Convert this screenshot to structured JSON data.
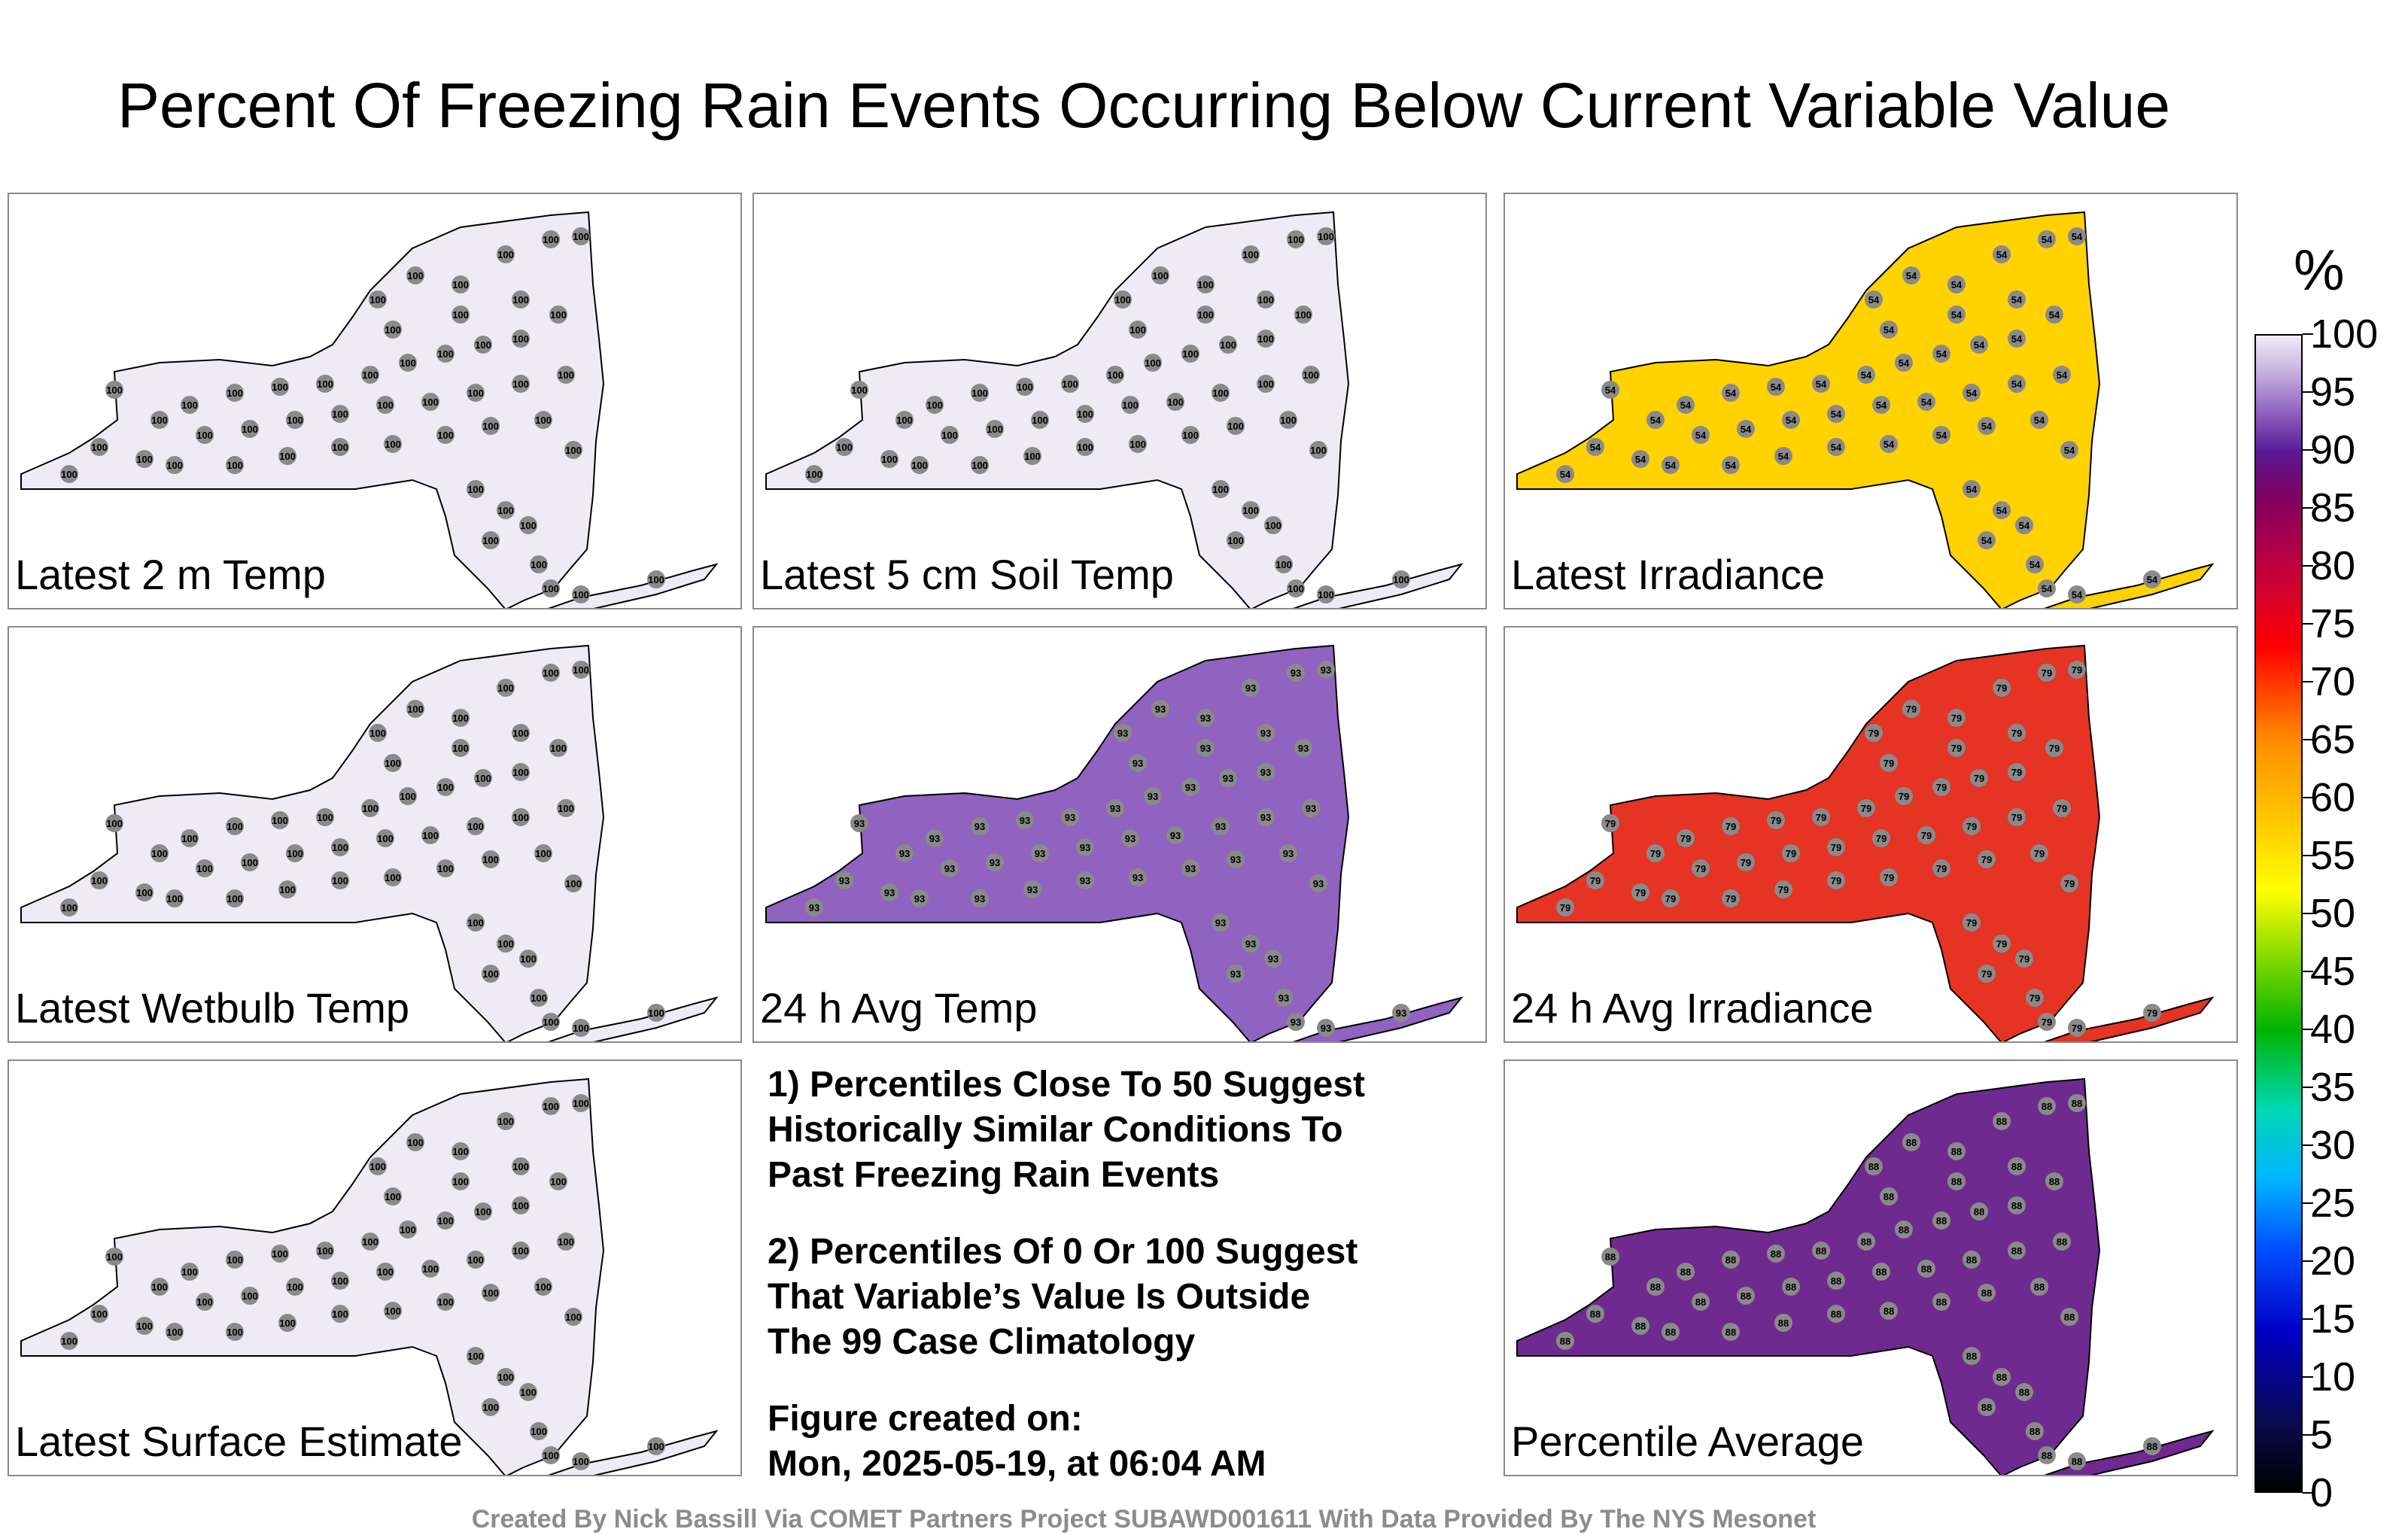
{
  "title": "Percent Of Freezing Rain Events Occurring Below Current Variable Value",
  "panels": [
    {
      "label": "Latest 2 m Temp",
      "fill": "#efebf5",
      "dots": 100
    },
    {
      "label": "Latest 5 cm Soil Temp",
      "fill": "#efebf5",
      "dots": 100
    },
    {
      "label": "Latest Irradiance",
      "fill": "#ffd200",
      "dots": 54
    },
    {
      "label": "Latest Wetbulb Temp",
      "fill": "#efebf5",
      "dots": 100
    },
    {
      "label": "24 h Avg Temp",
      "fill": "#8f63bf",
      "dots": 93
    },
    {
      "label": "24 h Avg Irradiance",
      "fill": "#e53324",
      "dots": 79
    },
    {
      "label": "Latest Surface Estimate",
      "fill": "#efebf5",
      "dots": 100
    },
    {
      "label": "Percentile Average",
      "fill": "#6f2a90",
      "dots": 88
    }
  ],
  "notes": [
    "1) Percentiles Close To 50 Suggest\nHistorically Similar Conditions To\nPast Freezing Rain Events",
    "2) Percentiles Of 0 Or 100 Suggest\nThat Variable’s Value Is Outside\nThe 99 Case Climatology"
  ],
  "created": "Figure created on:\nMon, 2025-05-19, at 06:04 AM",
  "footer": "Created By Nick Bassill Via COMET Partners Project SUBAWD001611 With Data Provided By The NYS Mesonet",
  "colorbar": {
    "unit": "%",
    "ticks": [
      "0",
      "5",
      "10",
      "15",
      "20",
      "25",
      "30",
      "35",
      "40",
      "45",
      "50",
      "55",
      "60",
      "65",
      "70",
      "75",
      "80",
      "85",
      "90",
      "95",
      "100"
    ],
    "colors": {
      "low": "#000000",
      "mid": "#ffff00",
      "high": "#f0ecf6"
    }
  }
}
